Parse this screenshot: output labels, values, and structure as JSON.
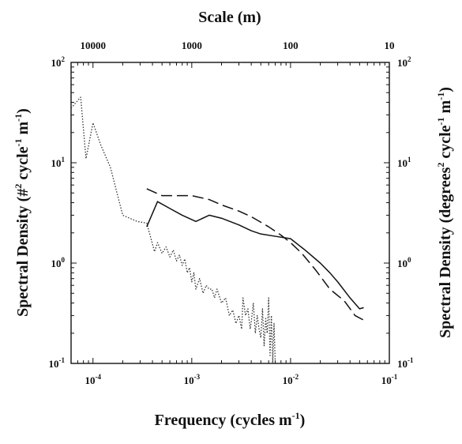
{
  "chart_data": {
    "type": "line",
    "x_scale": "log",
    "y_scale": "log",
    "xlim": [
      6e-05,
      0.1
    ],
    "ylim": [
      0.1,
      100
    ],
    "grid": false,
    "title": "",
    "xlabel": "Frequency (cycles m",
    "xlabel_sup": "-1",
    "xlabel_end": ")",
    "top_axis_label": "Scale (m)",
    "ylabel_left": {
      "before": "Spectral Density (#",
      "sup1": "2",
      "mid": " cycle",
      "sup2": "-1",
      "mid2": " m",
      "sup3": "-1",
      "after": ")"
    },
    "ylabel_right": {
      "before": "Spectral Density (degrees",
      "sup1": "2",
      "mid": " cycle",
      "sup2": "-1",
      "mid2": " m",
      "sup3": "-1",
      "after": ")"
    },
    "x_ticks": [
      {
        "value": 0.0001,
        "base": "10",
        "exp": "-4"
      },
      {
        "value": 0.001,
        "base": "10",
        "exp": "-3"
      },
      {
        "value": 0.01,
        "base": "10",
        "exp": "-2"
      },
      {
        "value": 0.1,
        "base": "10",
        "exp": "-1"
      }
    ],
    "y_ticks_left": [
      {
        "value": 0.1,
        "base": "10",
        "exp": "-1"
      },
      {
        "value": 1,
        "base": "10",
        "exp": "0"
      },
      {
        "value": 10,
        "base": "10",
        "exp": "1"
      },
      {
        "value": 100,
        "base": "10",
        "exp": "2"
      }
    ],
    "y_ticks_right": [
      {
        "value": 0.1,
        "base": "10",
        "exp": "-1"
      },
      {
        "value": 1,
        "base": "10",
        "exp": "0"
      },
      {
        "value": 10,
        "base": "10",
        "exp": "1"
      },
      {
        "value": 100,
        "base": "10",
        "exp": "2"
      }
    ],
    "top_ticks": [
      {
        "label": "10000",
        "value": 0.0001
      },
      {
        "label": "1000",
        "value": 0.001
      },
      {
        "label": "100",
        "value": 0.01
      },
      {
        "label": "10",
        "value": 0.1
      }
    ],
    "series": [
      {
        "style": "dotted",
        "color": "#333333",
        "points": [
          [
            6e-05,
            35
          ],
          [
            7.5e-05,
            45
          ],
          [
            8.5e-05,
            11
          ],
          [
            0.0001,
            25
          ],
          [
            0.00012,
            15
          ],
          [
            0.00015,
            9
          ],
          [
            0.0002,
            3
          ],
          [
            0.00028,
            2.6
          ],
          [
            0.00035,
            2.5
          ],
          [
            0.00042,
            1.3
          ],
          [
            0.00045,
            1.6
          ],
          [
            0.0005,
            1.25
          ],
          [
            0.00055,
            1.45
          ],
          [
            0.0006,
            1.15
          ],
          [
            0.00065,
            1.35
          ],
          [
            0.0007,
            1.05
          ],
          [
            0.00075,
            1.2
          ],
          [
            0.0008,
            0.95
          ],
          [
            0.00085,
            1.1
          ],
          [
            0.0009,
            0.8
          ],
          [
            0.00095,
            0.9
          ],
          [
            0.001,
            0.65
          ],
          [
            0.00105,
            0.8
          ],
          [
            0.0011,
            0.55
          ],
          [
            0.0012,
            0.7
          ],
          [
            0.0013,
            0.5
          ],
          [
            0.0014,
            0.6
          ],
          [
            0.0015,
            0.55
          ],
          [
            0.0016,
            0.55
          ],
          [
            0.0017,
            0.45
          ],
          [
            0.0018,
            0.55
          ],
          [
            0.002,
            0.4
          ],
          [
            0.0022,
            0.45
          ],
          [
            0.0024,
            0.3
          ],
          [
            0.0026,
            0.34
          ],
          [
            0.0028,
            0.25
          ],
          [
            0.003,
            0.3
          ],
          [
            0.0032,
            0.22
          ],
          [
            0.0033,
            0.45
          ],
          [
            0.0035,
            0.3
          ],
          [
            0.0037,
            0.35
          ],
          [
            0.0039,
            0.22
          ],
          [
            0.004,
            0.26
          ],
          [
            0.0042,
            0.4
          ],
          [
            0.0044,
            0.2
          ],
          [
            0.0046,
            0.3
          ],
          [
            0.0048,
            0.22
          ],
          [
            0.005,
            0.18
          ],
          [
            0.0052,
            0.35
          ],
          [
            0.0054,
            0.15
          ],
          [
            0.0056,
            0.28
          ],
          [
            0.0058,
            0.2
          ],
          [
            0.006,
            0.45
          ],
          [
            0.0062,
            0.12
          ],
          [
            0.0064,
            0.3
          ],
          [
            0.0066,
            0.1
          ],
          [
            0.0068,
            0.25
          ],
          [
            0.007,
            0.1
          ]
        ]
      },
      {
        "style": "solid",
        "color": "#111111",
        "points": [
          [
            0.00035,
            2.3
          ],
          [
            0.00045,
            4.1
          ],
          [
            0.0006,
            3.5
          ],
          [
            0.0008,
            3.0
          ],
          [
            0.0011,
            2.6
          ],
          [
            0.0015,
            3.0
          ],
          [
            0.002,
            2.8
          ],
          [
            0.003,
            2.4
          ],
          [
            0.004,
            2.1
          ],
          [
            0.005,
            1.95
          ],
          [
            0.007,
            1.85
          ],
          [
            0.01,
            1.75
          ],
          [
            0.014,
            1.35
          ],
          [
            0.02,
            1.0
          ],
          [
            0.025,
            0.8
          ],
          [
            0.03,
            0.65
          ],
          [
            0.04,
            0.45
          ],
          [
            0.05,
            0.35
          ],
          [
            0.055,
            0.36
          ]
        ]
      },
      {
        "style": "dashed",
        "color": "#111111",
        "points": [
          [
            0.00035,
            5.5
          ],
          [
            0.0005,
            4.7
          ],
          [
            0.0008,
            4.7
          ],
          [
            0.001,
            4.7
          ],
          [
            0.0015,
            4.3
          ],
          [
            0.002,
            3.8
          ],
          [
            0.003,
            3.3
          ],
          [
            0.004,
            2.9
          ],
          [
            0.006,
            2.3
          ],
          [
            0.008,
            1.9
          ],
          [
            0.01,
            1.6
          ],
          [
            0.013,
            1.25
          ],
          [
            0.018,
            0.85
          ],
          [
            0.025,
            0.55
          ],
          [
            0.035,
            0.42
          ],
          [
            0.045,
            0.3
          ],
          [
            0.055,
            0.27
          ]
        ]
      }
    ]
  }
}
